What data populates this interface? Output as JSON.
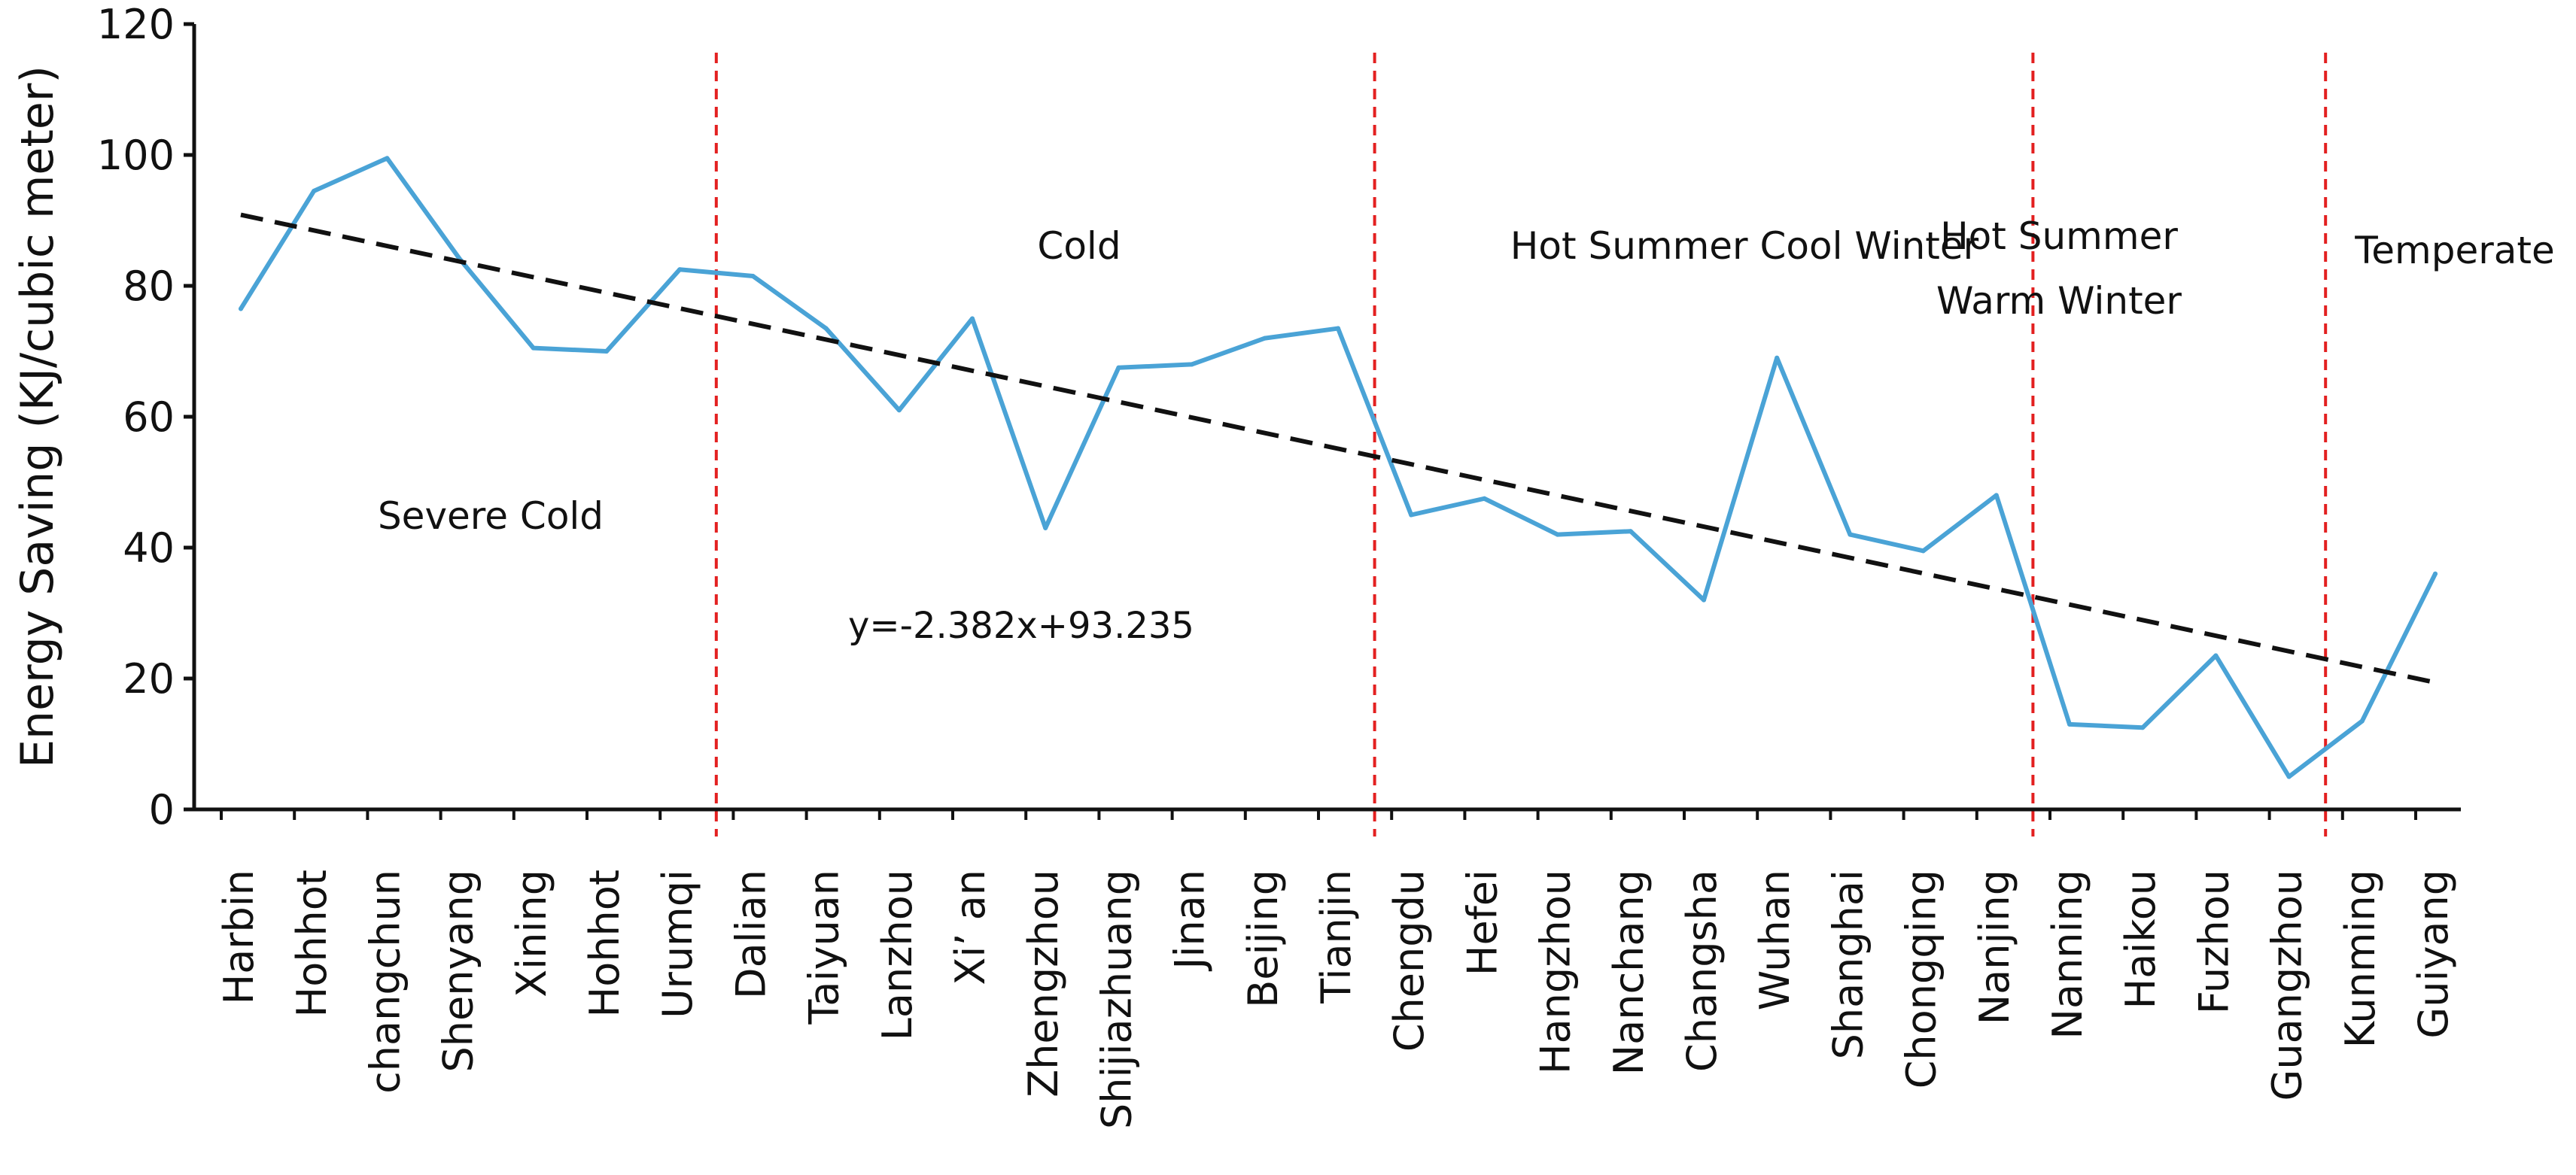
{
  "chart_data": {
    "type": "line",
    "title": "",
    "xlabel": "",
    "ylabel": "Energy Saving (KJ/cubic meter)",
    "ylim": [
      0,
      120
    ],
    "yticks": [
      0,
      20,
      40,
      60,
      80,
      100,
      120
    ],
    "grid": false,
    "categories": [
      "Harbin",
      "Hohhot",
      "changchun",
      "Shenyang",
      "Xining",
      "Hohhot",
      "Urumqi",
      "Dalian",
      "Taiyuan",
      "Lanzhou",
      "Xi’ an",
      "Zhengzhou",
      "Shijiazhuang",
      "Jinan",
      "Beijing",
      "Tianjin",
      "Chengdu",
      "Hefei",
      "Hangzhou",
      "Nanchang",
      "Changsha",
      "Wuhan",
      "Shanghai",
      "Chongqing",
      "Nanjing",
      "Nanning",
      "Haikou",
      "Fuzhou",
      "Guangzhou",
      "Kunming",
      "Guiyang"
    ],
    "series": [
      {
        "name": "Energy Saving",
        "color": "#4aa3d6",
        "values": [
          76.5,
          94.5,
          99.5,
          84,
          70.5,
          70,
          82.5,
          81.5,
          73.5,
          61,
          75,
          43,
          67.5,
          68,
          72,
          73.5,
          45,
          47.5,
          42,
          42.5,
          32,
          69,
          42,
          39.5,
          48,
          13,
          12.5,
          23.5,
          5,
          13.5,
          36
        ]
      }
    ],
    "trendline": {
      "name": "linear fit",
      "equation": "y=-2.382x+93.235",
      "slope": -2.382,
      "intercept": 93.235,
      "color": "#111111",
      "dashed": true
    },
    "zone_boundaries": [
      {
        "after_category": "Urumqi",
        "color": "#e32020"
      },
      {
        "after_category": "Tianjin",
        "color": "#e32020"
      },
      {
        "after_category": "Nanjing",
        "color": "#e32020"
      },
      {
        "after_category": "Guangzhou",
        "color": "#e32020"
      }
    ],
    "zones": [
      {
        "name": "Severe Cold",
        "lines": [
          "Severe Cold"
        ]
      },
      {
        "name": "Cold",
        "lines": [
          "Cold"
        ]
      },
      {
        "name": "Hot Summer Cool Winter",
        "lines": [
          "Hot Summer Cool Winter"
        ]
      },
      {
        "name": "Hot Summer Warm Winter",
        "lines": [
          "Hot Summer",
          "Warm Winter"
        ]
      },
      {
        "name": "Temperate",
        "lines": [
          "Temperate"
        ]
      }
    ]
  }
}
